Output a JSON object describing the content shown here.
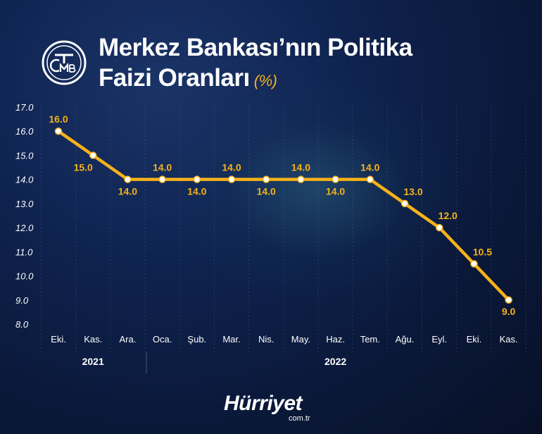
{
  "header": {
    "title_line1": "Merkez Bankası’nın Politika",
    "title_line2": "Faizi Oranları",
    "unit": "(%)"
  },
  "logo": {
    "icon": "tcmb-logo-icon",
    "letters": "TCMB"
  },
  "footer": {
    "brand": "Hürriyet",
    "domain": "com.tr"
  },
  "colors": {
    "line": "#f6b21a",
    "background": "#0f2350",
    "label": "#f6b21a",
    "axis_text": "#ffffff"
  },
  "chart_data": {
    "type": "line",
    "categories": [
      "Eki.",
      "Kas.",
      "Ara.",
      "Oca.",
      "Şub.",
      "Mar.",
      "Nis.",
      "May.",
      "Haz.",
      "Tem.",
      "Ağu.",
      "Eyl.",
      "Eki.",
      "Kas."
    ],
    "values": [
      16.0,
      15.0,
      14.0,
      14.0,
      14.0,
      14.0,
      14.0,
      14.0,
      14.0,
      14.0,
      13.0,
      12.0,
      10.5,
      9.0
    ],
    "data_labels": [
      "16.0",
      "15.0",
      "14.0",
      "14.0",
      "14.0",
      "14.0",
      "14.0",
      "14.0",
      "14.0",
      "14.0",
      "13.0",
      "12.0",
      "10.5",
      "9.0"
    ],
    "label_positions": [
      "above",
      "below",
      "below",
      "above",
      "below",
      "above",
      "below",
      "above",
      "below",
      "above",
      "above",
      "above",
      "above",
      "below"
    ],
    "ylim": [
      8.0,
      17.0
    ],
    "y_ticks": [
      "8.0",
      "9.0",
      "10.0",
      "11.0",
      "12.0",
      "13.0",
      "14.0",
      "15.0",
      "16.0",
      "17.0"
    ],
    "year_groups": [
      {
        "label": "2021",
        "from": 0,
        "to": 2
      },
      {
        "label": "2022",
        "from": 3,
        "to": 13
      }
    ],
    "grid": "vertical-dashed"
  }
}
